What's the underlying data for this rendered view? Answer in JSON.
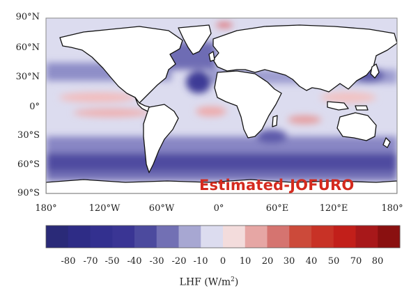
{
  "map": {
    "title": "Estimated-JOFURO",
    "lat_labels": [
      "90°N",
      "60°N",
      "30°N",
      "0°",
      "30°S",
      "60°S",
      "90°S"
    ],
    "lon_labels": [
      "180°",
      "120°W",
      "60°W",
      "0°",
      "60°E",
      "120°E",
      "180°"
    ],
    "projection": "equirectangular",
    "colors": {
      "ocean_base": "#dcdcef",
      "land": "#ffffff",
      "coastline": "#111111"
    }
  },
  "colorbar": {
    "label_text": "LHF (W/m",
    "label_sup": "2",
    "label_close": ")",
    "ticks": [
      "-80",
      "-70",
      "-50",
      "-40",
      "-30",
      "-20",
      "-10",
      "0",
      "10",
      "20",
      "30",
      "40",
      "50",
      "70",
      "80"
    ],
    "colors": [
      "#2a2a78",
      "#2e2c86",
      "#33308f",
      "#3a3594",
      "#4c4a9e",
      "#7270b4",
      "#a7a7d2",
      "#dcdcef",
      "#f3dcdc",
      "#e6a6a4",
      "#d57470",
      "#cc4a3a",
      "#c83226",
      "#c21f1a",
      "#a8181a",
      "#8a1010"
    ]
  }
}
